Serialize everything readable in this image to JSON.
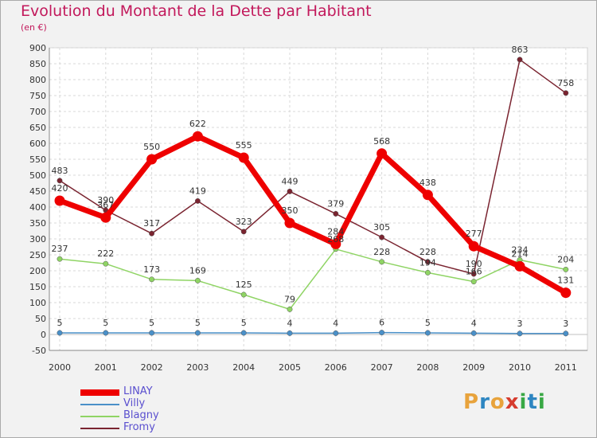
{
  "title": "Evolution du Montant de la Dette par Habitant",
  "subtitle": "(en €)",
  "logo": {
    "text": "Proxiti",
    "colors": [
      "#e8a33c",
      "#2e86c1",
      "#e8a33c",
      "#d63c2f",
      "#39a845",
      "#2e86c1",
      "#39a845"
    ]
  },
  "chart_data": {
    "type": "line",
    "x": [
      "2000",
      "2001",
      "2002",
      "2003",
      "2004",
      "2005",
      "2006",
      "2007",
      "2008",
      "2009",
      "2010",
      "2011"
    ],
    "ylim": [
      -50,
      900
    ],
    "yticks": [
      -50,
      0,
      50,
      100,
      150,
      200,
      250,
      300,
      350,
      400,
      450,
      500,
      550,
      600,
      650,
      700,
      750,
      800,
      850,
      900
    ],
    "grid": true,
    "legend_position": "bottom-left",
    "series": [
      {
        "name": "LINAY",
        "color": "#ee0000",
        "values": [
          420,
          367,
          550,
          622,
          555,
          350,
          284,
          568,
          438,
          277,
          214,
          131
        ]
      },
      {
        "name": "Villy",
        "color": "#4a90c8",
        "values": [
          5,
          5,
          5,
          5,
          5,
          4,
          4,
          6,
          5,
          4,
          3,
          3
        ]
      },
      {
        "name": "Blagny",
        "color": "#8fd464",
        "values": [
          237,
          222,
          173,
          169,
          125,
          79,
          268,
          228,
          194,
          166,
          234,
          204
        ]
      },
      {
        "name": "Fromy",
        "color": "#7a2430",
        "values": [
          483,
          390,
          317,
          419,
          323,
          449,
          379,
          305,
          228,
          190,
          863,
          758
        ]
      }
    ],
    "data_labels": [
      {
        "series": 0,
        "labels": [
          "420",
          "367",
          "550",
          "622",
          "555",
          "350",
          "284",
          "568",
          "438",
          "277",
          "214",
          "131"
        ]
      },
      {
        "series": 1,
        "labels": [
          "5",
          "5",
          "5",
          "5",
          "5",
          "4",
          "4",
          "6",
          "5",
          "4",
          "3",
          "3"
        ]
      },
      {
        "series": 2,
        "labels": [
          "237",
          "222",
          "173",
          "169",
          "125",
          "79",
          "268",
          "228",
          "194",
          "166",
          "234",
          "204"
        ]
      },
      {
        "series": 3,
        "labels": [
          "483",
          "390",
          "317",
          "419",
          "323",
          "449",
          "379",
          "305",
          "228",
          "190",
          "863",
          "758"
        ]
      }
    ]
  }
}
